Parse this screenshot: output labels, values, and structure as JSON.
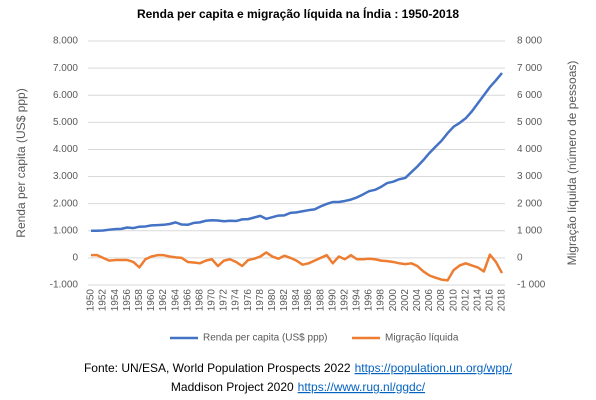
{
  "chart_data": {
    "type": "line",
    "title": "Renda per capita e migração líquida na Índia  : 1950-2018",
    "y_label": "Renda per capita (US$ ppp)",
    "y2_label": "Migração líquida (número de pessoas)",
    "categories": [
      "1950",
      null,
      "1952",
      null,
      "1954",
      null,
      "1956",
      null,
      "1958",
      null,
      "1960",
      null,
      "1962",
      null,
      "1964",
      null,
      "1966",
      null,
      "1968",
      null,
      "1970",
      null,
      "1972",
      null,
      "1974",
      null,
      "1976",
      null,
      "1978",
      null,
      "1980",
      null,
      "1982",
      null,
      "1984",
      null,
      "1986",
      null,
      "1988",
      null,
      "1990",
      null,
      "1992",
      null,
      "1994",
      null,
      "1996",
      null,
      "1998",
      null,
      "2000",
      null,
      "2002",
      null,
      "2004",
      null,
      "2006",
      null,
      "2008",
      null,
      "2010",
      null,
      "2012",
      null,
      "2014",
      null,
      "2016",
      null,
      "2018"
    ],
    "series": [
      {
        "name": "Renda per capita (US$ ppp)",
        "color": "#4472c4",
        "axis": "y",
        "values": [
          1000,
          1000,
          1010,
          1040,
          1060,
          1070,
          1120,
          1100,
          1150,
          1160,
          1200,
          1210,
          1220,
          1250,
          1310,
          1230,
          1220,
          1290,
          1310,
          1370,
          1390,
          1380,
          1350,
          1370,
          1360,
          1420,
          1430,
          1490,
          1550,
          1440,
          1500,
          1560,
          1570,
          1660,
          1680,
          1720,
          1760,
          1790,
          1900,
          1990,
          2060,
          2060,
          2100,
          2150,
          2230,
          2340,
          2460,
          2510,
          2620,
          2760,
          2810,
          2900,
          2950,
          3160,
          3370,
          3610,
          3870,
          4100,
          4320,
          4600,
          4840,
          4980,
          5150,
          5400,
          5700,
          6000,
          6300,
          6550,
          6820
        ]
      },
      {
        "name": "Migração líquida",
        "color": "#ed7d31",
        "axis": "y2",
        "values": [
          100,
          100,
          0,
          -100,
          -80,
          -80,
          -80,
          -150,
          -350,
          -50,
          50,
          100,
          100,
          50,
          20,
          0,
          -150,
          -170,
          -200,
          -100,
          -50,
          -300,
          -100,
          -50,
          -150,
          -300,
          -80,
          -30,
          50,
          200,
          50,
          -30,
          80,
          0,
          -100,
          -250,
          -200,
          -100,
          0,
          100,
          -200,
          50,
          -50,
          100,
          -50,
          -50,
          -30,
          -50,
          -100,
          -120,
          -150,
          -200,
          -230,
          -200,
          -300,
          -500,
          -650,
          -730,
          -800,
          -830,
          -450,
          -280,
          -200,
          -280,
          -350,
          -500,
          120,
          -150,
          -560
        ]
      }
    ],
    "ylim": [
      -1000,
      8000
    ],
    "yticks": [
      {
        "value": -1000,
        "label": "-1.000"
      },
      0,
      {
        "value": 1000,
        "label": "1.000"
      },
      {
        "value": 2000,
        "label": "2.000"
      },
      {
        "value": 3000,
        "label": "3.000"
      },
      {
        "value": 4000,
        "label": "4.000"
      },
      {
        "value": 5000,
        "label": "5.000"
      },
      {
        "value": 6000,
        "label": "6.000"
      },
      {
        "value": 7000,
        "label": "7.000"
      },
      {
        "value": 8000,
        "label": "8.000"
      }
    ],
    "y2lim": [
      -1000,
      8000
    ],
    "y2ticks": [
      {
        "value": -1000,
        "label": "-1 000"
      },
      0,
      {
        "value": 1000,
        "label": "1 000"
      },
      {
        "value": 2000,
        "label": "2 000"
      },
      {
        "value": 3000,
        "label": "3 000"
      },
      {
        "value": 4000,
        "label": "4 000"
      },
      {
        "value": 5000,
        "label": "5 000"
      },
      {
        "value": 6000,
        "label": "6 000"
      },
      {
        "value": 7000,
        "label": "7 000"
      },
      {
        "value": 8000,
        "label": "8 000"
      }
    ],
    "grid": true,
    "legend": "bottom",
    "source": [
      {
        "text": "Fonte: UN/ESA, World Population Prospects 2022",
        "link": "https://population.un.org/wpp/"
      },
      {
        "text": "Maddison Project 2020",
        "link": "https://www.rug.nl/ggdc/"
      }
    ]
  }
}
